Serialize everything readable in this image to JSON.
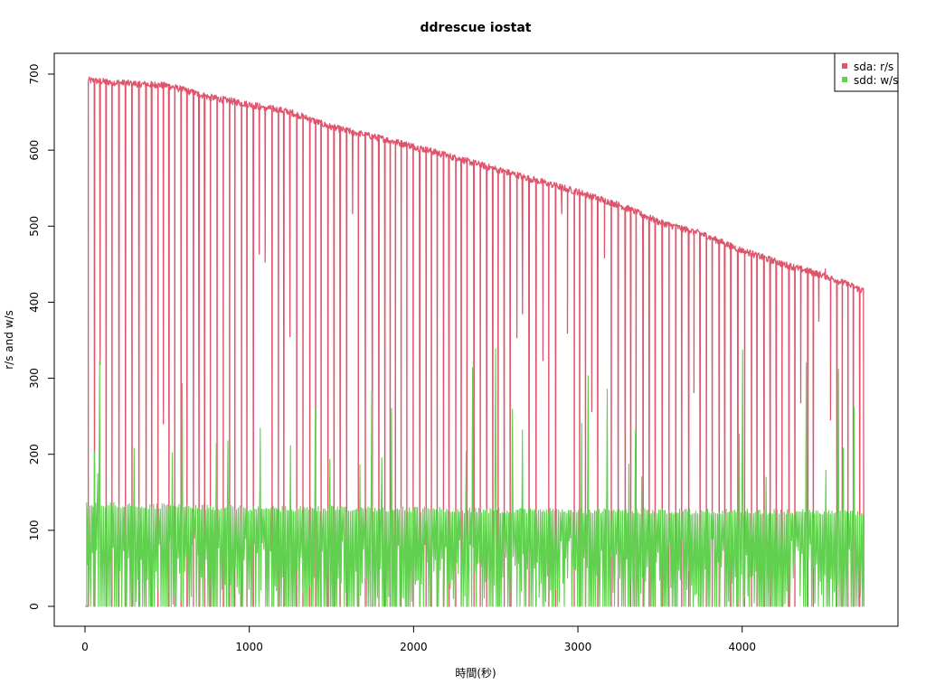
{
  "chart_data": {
    "type": "line",
    "title": "ddrescue iostat",
    "xlabel": "時間(秒)",
    "ylabel": "r/s and w/s",
    "xlim": [
      0,
      4750
    ],
    "ylim": [
      0,
      700
    ],
    "x_ticks": [
      0,
      1000,
      2000,
      3000,
      4000
    ],
    "y_ticks": [
      0,
      100,
      200,
      300,
      400,
      500,
      600,
      700
    ],
    "grid": false,
    "legend_position": "top-right",
    "series": [
      {
        "name": "sda: r/s",
        "color": "#DF536B",
        "pattern": "sawtooth: plateau read rate with periodic drops to 0",
        "x": [
          0,
          250,
          500,
          750,
          1000,
          1250,
          1500,
          1750,
          2000,
          2250,
          2500,
          2750,
          3000,
          3250,
          3500,
          3750,
          4000,
          4250,
          4500,
          4740
        ],
        "values": [
          692,
          688,
          685,
          670,
          660,
          650,
          630,
          618,
          605,
          590,
          575,
          560,
          545,
          528,
          505,
          490,
          468,
          450,
          435,
          415
        ]
      },
      {
        "name": "sdd: w/s",
        "color": "#61D04F",
        "pattern": "oscillating write rate between 0 and peak with occasional spikes",
        "x": [
          0,
          250,
          500,
          750,
          1000,
          1250,
          1500,
          1750,
          2000,
          2250,
          2500,
          2750,
          3000,
          3250,
          3500,
          3750,
          4000,
          4250,
          4500,
          4740
        ],
        "values": [
          134,
          132,
          131,
          130,
          129,
          128,
          128,
          127,
          127,
          126,
          126,
          125,
          125,
          125,
          124,
          124,
          124,
          124,
          123,
          123
        ]
      }
    ]
  }
}
